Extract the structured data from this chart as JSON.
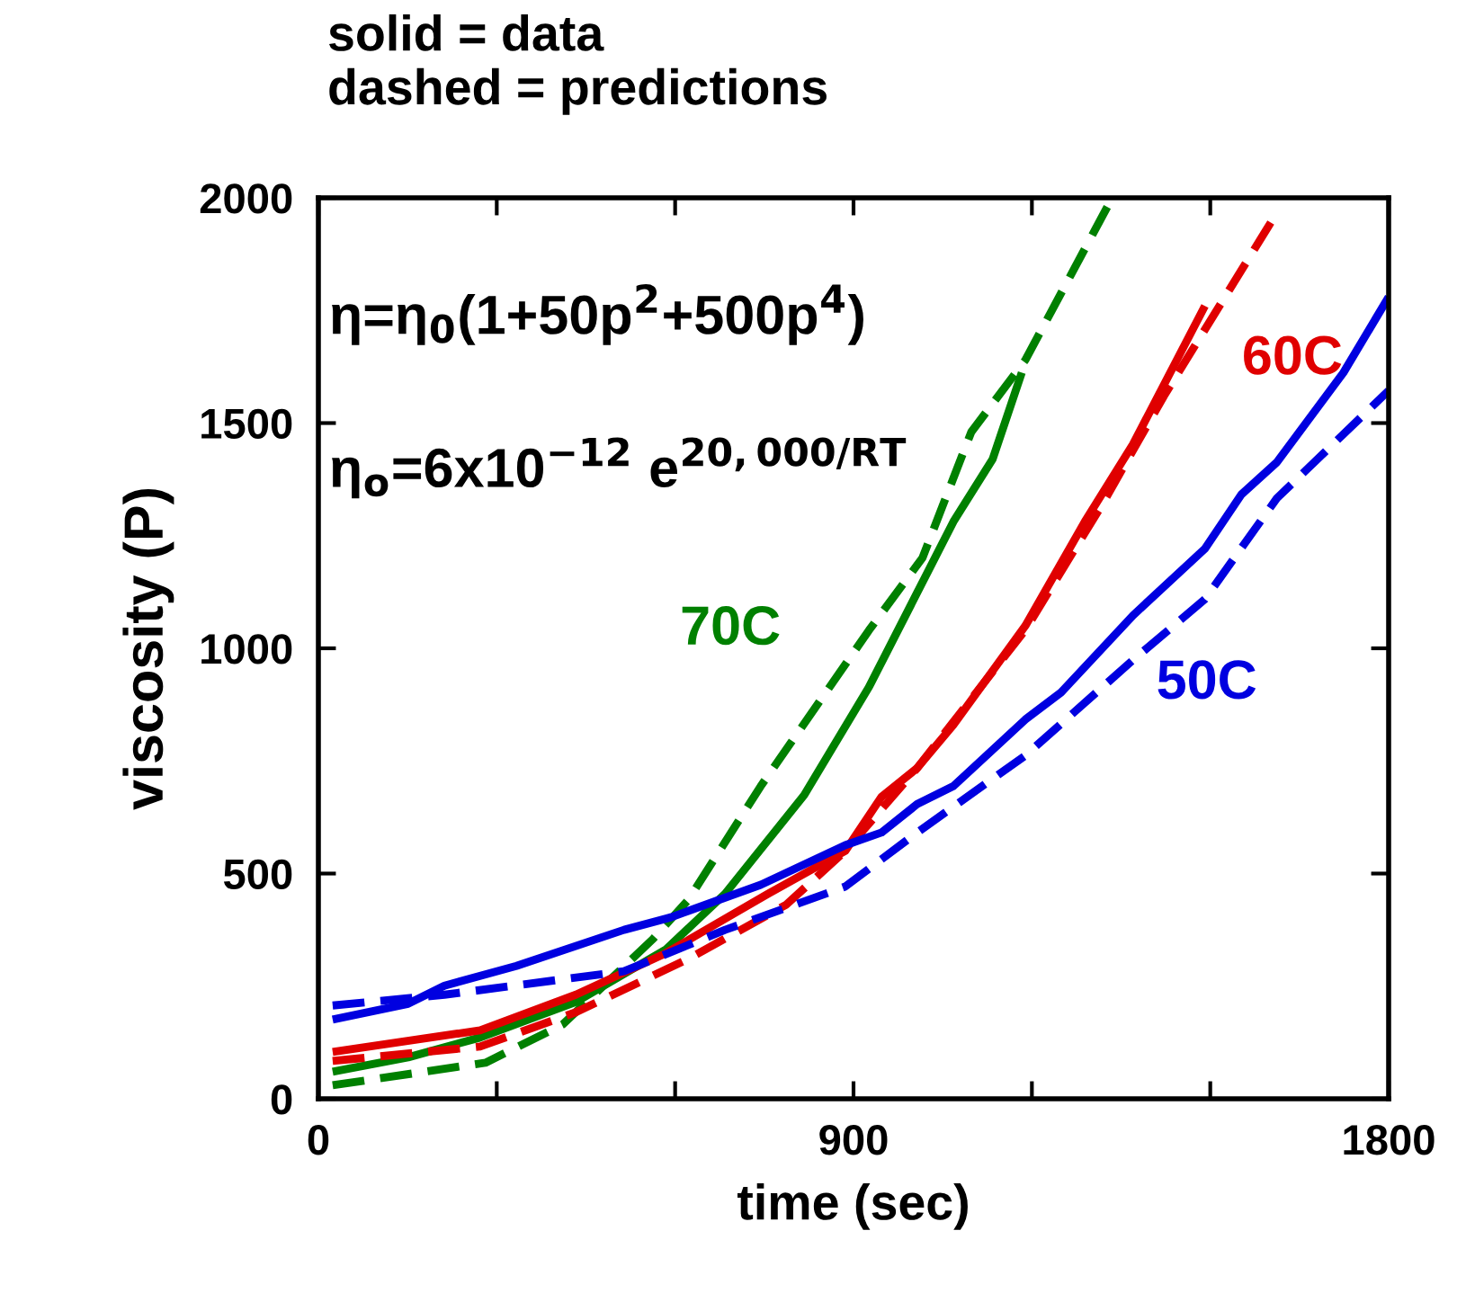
{
  "chart_data": {
    "type": "line",
    "title": "solid = data\ndashed = predictions",
    "xlabel": "time (sec)",
    "ylabel": "viscosity (P)",
    "xlim": [
      0,
      1800
    ],
    "xticks": [
      0,
      {
        "value": 300,
        "label": null
      },
      {
        "value": 600,
        "label": null
      },
      900,
      {
        "value": 1200,
        "label": null
      },
      {
        "value": 1500,
        "label": null
      },
      1800
    ],
    "ylim": [
      0,
      2000
    ],
    "yticks": [
      0,
      500,
      1000,
      1500,
      2000
    ],
    "grid": false,
    "legend": false,
    "marker": "none",
    "series": [
      {
        "name": "70C",
        "color": "#008000",
        "line_style": "solid",
        "x": [
          24,
          151,
          272,
          433,
          584,
          684,
          817,
          926,
          1068,
          1134,
          1183
        ],
        "values": [
          60,
          92,
          136,
          215,
          331,
          455,
          674,
          914,
          1281,
          1420,
          1612
        ]
      },
      {
        "color": "#008000",
        "line_style": "dashed",
        "x": [
          24,
          281,
          411,
          563,
          623,
          744,
          926,
          1016,
          1098,
          1189,
          1335
        ],
        "values": [
          30,
          80,
          165,
          355,
          443,
          694,
          1040,
          1201,
          1480,
          1640,
          2000
        ]
      },
      {
        "name": "60C",
        "color": "#e00000",
        "line_style": "solid",
        "x": [
          24,
          272,
          433,
          584,
          756,
          886,
          947,
          1007,
          1068,
          1189,
          1289,
          1370,
          1491
        ],
        "values": [
          104,
          152,
          231,
          323,
          455,
          550,
          670,
          734,
          830,
          1050,
          1281,
          1453,
          1760
        ]
      },
      {
        "color": "#e00000",
        "line_style": "dashed",
        "x": [
          24,
          272,
          433,
          623,
          787,
          886,
          1007,
          1189,
          1319,
          1422,
          1612
        ],
        "values": [
          84,
          116,
          192,
          311,
          431,
          550,
          734,
          1041,
          1321,
          1560,
          1967
        ]
      },
      {
        "name": "50C",
        "color": "#0000e0",
        "line_style": "solid",
        "x": [
          24,
          151,
          212,
          333,
          514,
          593,
          744,
          886,
          947,
          1007,
          1068,
          1189,
          1249,
          1370,
          1491,
          1552,
          1612,
          1724,
          1800
        ],
        "values": [
          176,
          211,
          251,
          295,
          375,
          403,
          475,
          563,
          591,
          654,
          694,
          842,
          902,
          1073,
          1221,
          1341,
          1413,
          1612,
          1780
        ]
      },
      {
        "color": "#0000e0",
        "line_style": "dashed",
        "x": [
          24,
          212,
          514,
          684,
          886,
          1007,
          1189,
          1370,
          1491,
          1612,
          1800
        ],
        "values": [
          207,
          231,
          283,
          375,
          471,
          591,
          762,
          974,
          1109,
          1333,
          1572
        ]
      }
    ],
    "annotations": [
      "η=η$_{0}$(1+50p$^{2}$+500p$^{4}$)",
      "η$_{o}$=6x10$^{−12}$ e$^{20,000/RT}$"
    ]
  }
}
